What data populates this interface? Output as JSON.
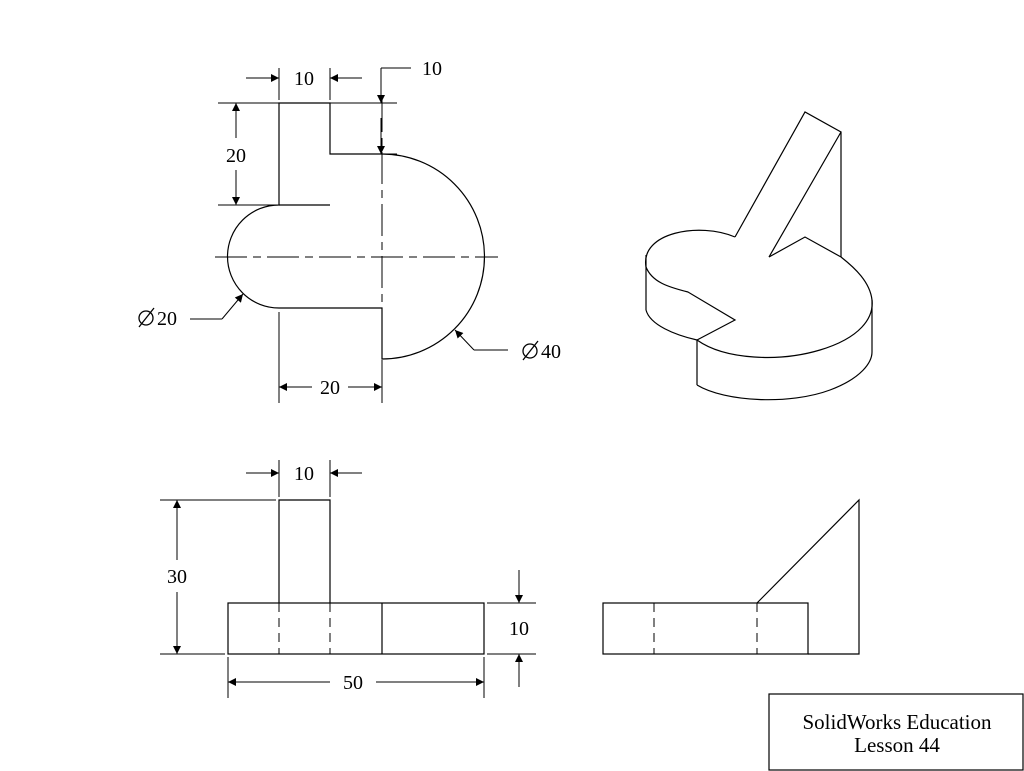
{
  "top_view": {
    "dims": {
      "tab_width": "10",
      "step_offset": "10",
      "tab_height": "20",
      "hole_diameter": "20",
      "arc_diameter": "40",
      "depth": "20"
    },
    "diameter_symbol": "diameter-icon"
  },
  "front_view": {
    "dims": {
      "fin_width": "10",
      "total_height": "30",
      "base_height": "10",
      "total_length": "50"
    }
  },
  "title_block": {
    "line1": "SolidWorks Education",
    "line2": "Lesson 44"
  },
  "colors": {
    "line": "#000000",
    "background": "#ffffff"
  }
}
